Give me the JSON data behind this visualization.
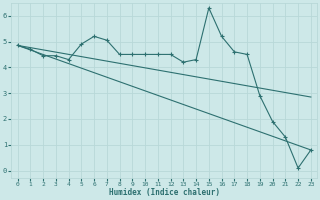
{
  "xlabel": "Humidex (Indice chaleur)",
  "ylabel": "",
  "bg_color": "#cde8e8",
  "grid_color": "#b8d8d8",
  "line_color": "#2d7070",
  "xlim": [
    -0.5,
    23.5
  ],
  "ylim": [
    -0.3,
    6.5
  ],
  "xticks": [
    0,
    1,
    2,
    3,
    4,
    5,
    6,
    7,
    8,
    9,
    10,
    11,
    12,
    13,
    14,
    15,
    16,
    17,
    18,
    19,
    20,
    21,
    22,
    23
  ],
  "yticks": [
    0,
    1,
    2,
    3,
    4,
    5,
    6
  ],
  "line1_x": [
    0,
    1,
    2,
    3,
    4,
    5,
    6,
    7,
    8,
    9,
    10,
    11,
    12,
    13,
    14,
    15,
    16,
    17,
    18,
    19,
    20,
    21,
    22,
    23
  ],
  "line1_y": [
    4.85,
    4.7,
    4.45,
    4.45,
    4.3,
    4.9,
    5.2,
    5.05,
    4.5,
    4.5,
    4.5,
    4.5,
    4.5,
    4.2,
    4.3,
    6.3,
    5.2,
    4.6,
    4.5,
    2.9,
    1.9,
    1.3,
    0.1,
    0.8
  ],
  "line2_x": [
    0,
    23
  ],
  "line2_y": [
    4.85,
    2.85
  ],
  "line3_x": [
    0,
    23
  ],
  "line3_y": [
    4.85,
    0.8
  ]
}
